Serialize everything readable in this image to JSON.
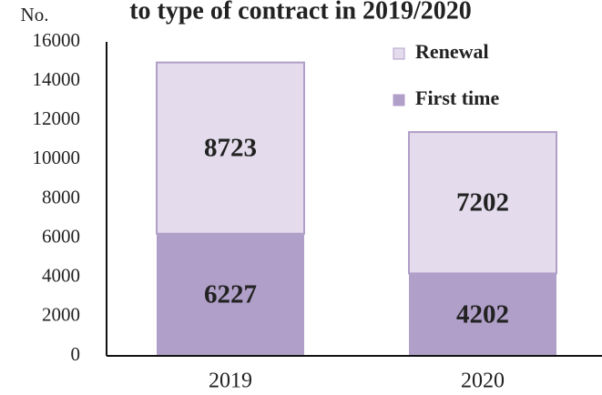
{
  "chart_data": {
    "type": "stacked_bar",
    "title": "to type of contract in 2019/2020",
    "y_label": "No.",
    "categories": [
      "2019",
      "2020"
    ],
    "series": [
      {
        "name": "First time",
        "color": "#b09fc8",
        "values": [
          6227,
          4202
        ]
      },
      {
        "name": "Renewal",
        "color": "#e4dced",
        "values": [
          8723,
          7202
        ]
      }
    ],
    "ylim": [
      0,
      16000
    ],
    "yticks": [
      0,
      2000,
      4000,
      6000,
      8000,
      10000,
      12000,
      14000,
      16000
    ],
    "legend": "upper right"
  }
}
